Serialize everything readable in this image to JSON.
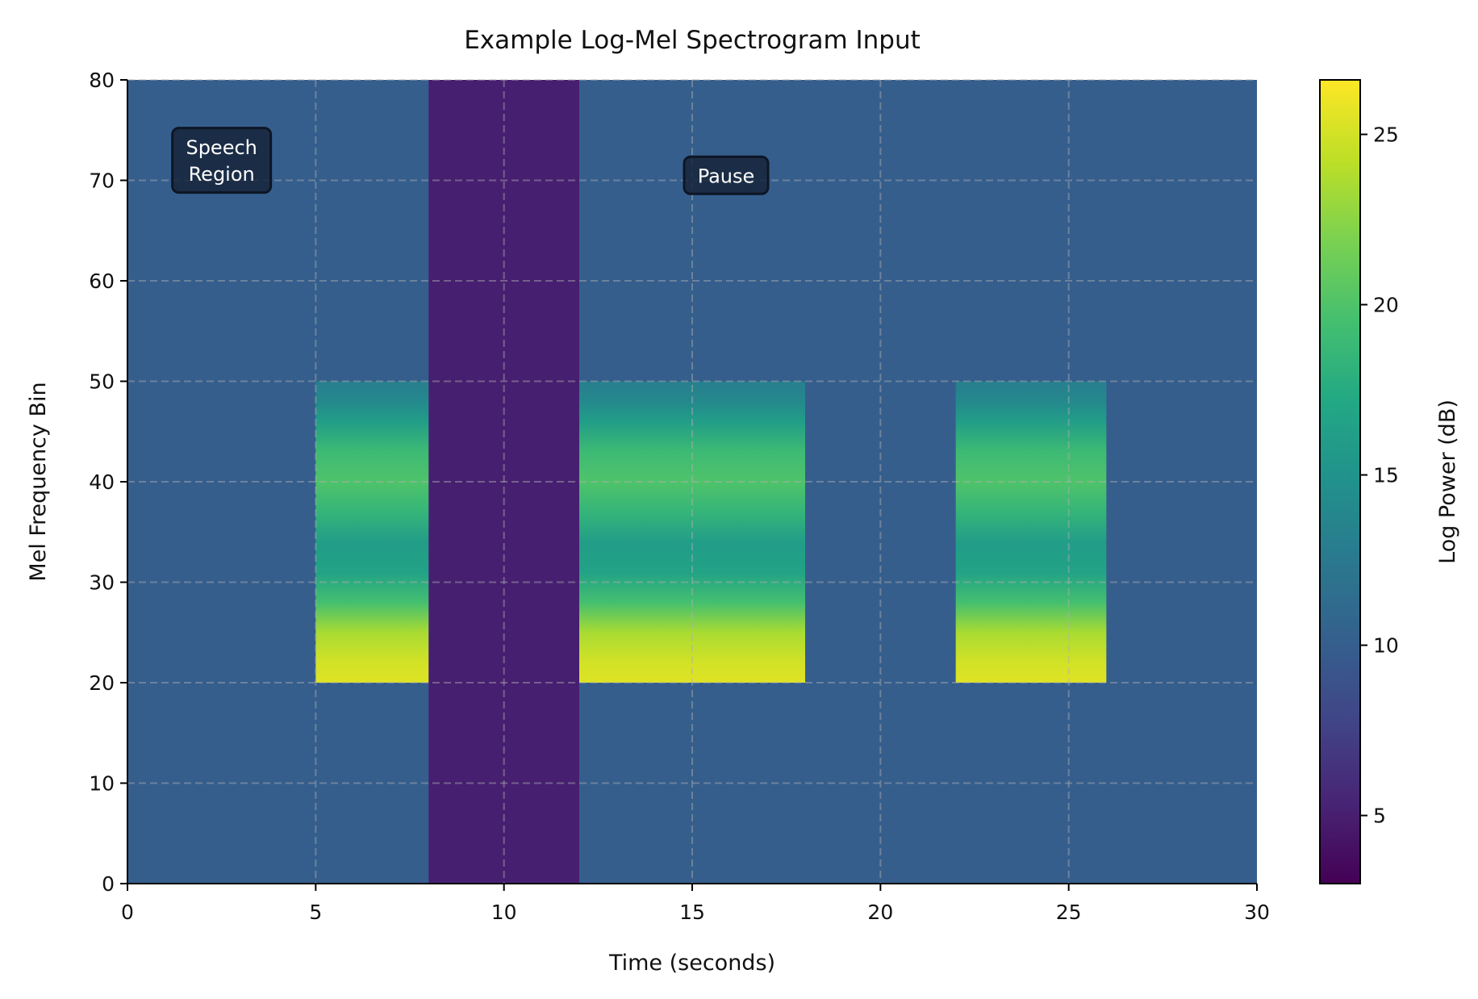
{
  "chart_data": {
    "type": "heatmap",
    "title": "Example Log-Mel Spectrogram Input",
    "xlabel": "Time (seconds)",
    "ylabel": "Mel Frequency Bin",
    "xlim": [
      0,
      30
    ],
    "ylim": [
      0,
      80
    ],
    "xticks": [
      0,
      5,
      10,
      15,
      20,
      25,
      30
    ],
    "yticks": [
      0,
      10,
      20,
      30,
      40,
      50,
      60,
      70,
      80
    ],
    "grid": true,
    "colormap": "viridis",
    "colorbar": {
      "label": "Log Power (dB)",
      "range": [
        3.0,
        26.6
      ],
      "ticks": [
        5,
        10,
        15,
        20,
        25
      ]
    },
    "background_value": 10,
    "regions": [
      {
        "kind": "speech",
        "t_start": 5,
        "t_end": 8,
        "bin_start": 20,
        "bin_end": 50
      },
      {
        "kind": "silence",
        "t_start": 8,
        "t_end": 12,
        "bin_start": 0,
        "bin_end": 80,
        "value": 5
      },
      {
        "kind": "speech",
        "t_start": 12,
        "t_end": 18,
        "bin_start": 20,
        "bin_end": 50
      },
      {
        "kind": "speech",
        "t_start": 22,
        "t_end": 26,
        "bin_start": 20,
        "bin_end": 50
      }
    ],
    "speech_profile": {
      "bins": [
        20,
        22,
        25,
        28,
        31,
        34,
        37,
        40,
        43,
        46,
        48,
        50
      ],
      "values": [
        25.5,
        25,
        23.5,
        19.5,
        16.5,
        16,
        18.5,
        20,
        19,
        16,
        14,
        13
      ]
    },
    "annotations": [
      {
        "text": "Speech\nRegion",
        "line1": "Speech",
        "line2": "Region",
        "x": 2.5,
        "y": 72
      },
      {
        "text": "Pause",
        "x": 15.9,
        "y": 70.5
      }
    ]
  }
}
